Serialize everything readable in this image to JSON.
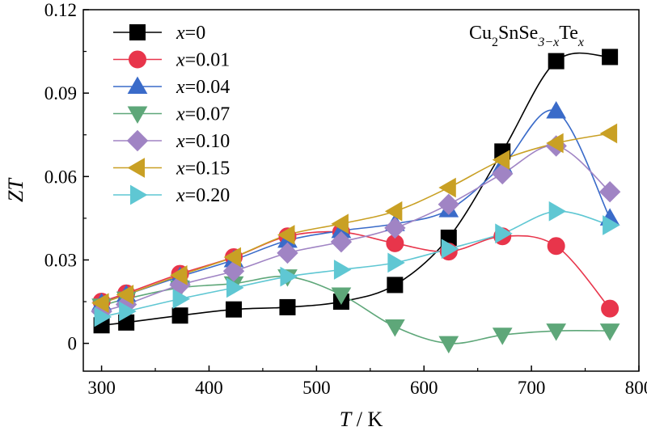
{
  "chart_data": {
    "type": "line",
    "title": "",
    "annotation": {
      "base": "Cu",
      "sub1": "2",
      "mid": "SnSe",
      "sub2": "3−x",
      "end": "Te",
      "sub3": "x"
    },
    "xlabel": {
      "var": "T",
      "unit": " / K"
    },
    "ylabel": "ZT",
    "xlim": [
      283,
      800
    ],
    "ylim": [
      -0.01,
      0.12
    ],
    "xticks": [
      300,
      400,
      500,
      600,
      700,
      800
    ],
    "yticks": [
      0,
      0.03,
      0.06,
      0.09,
      0.12
    ],
    "ytick_labels": [
      "0",
      "0.03",
      "0.06",
      "0.09",
      "0.12"
    ],
    "grid": false,
    "legend_position": "top-left",
    "x": [
      300,
      323,
      373,
      423,
      473,
      523,
      573,
      623,
      673,
      723,
      773
    ],
    "series": [
      {
        "name": "x=0",
        "label_var": "x",
        "label_val": "=0",
        "marker": "square",
        "color": "#000000",
        "values": [
          0.0065,
          0.0075,
          0.01,
          0.0122,
          0.013,
          0.015,
          0.021,
          0.038,
          0.069,
          0.1015,
          0.103
        ]
      },
      {
        "name": "x=0.01",
        "label_var": "x",
        "label_val": "=0.01",
        "marker": "circle",
        "color": "#e8354b",
        "values": [
          0.015,
          0.018,
          0.025,
          0.031,
          0.0385,
          0.04,
          0.036,
          0.033,
          0.0385,
          0.035,
          0.0125
        ]
      },
      {
        "name": "x=0.04",
        "label_var": "x",
        "label_val": "=0.04",
        "marker": "triangle-up",
        "color": "#3a6bc9",
        "values": [
          0.0145,
          0.0175,
          0.024,
          0.03,
          0.037,
          0.0405,
          0.043,
          0.048,
          0.064,
          0.0835,
          0.045
        ]
      },
      {
        "name": "x=0.07",
        "label_var": "x",
        "label_val": "=0.07",
        "marker": "triangle-down",
        "color": "#5ea779",
        "values": [
          0.0135,
          0.016,
          0.02,
          0.0215,
          0.024,
          0.0175,
          0.006,
          0.0,
          0.003,
          0.0045,
          0.0045
        ]
      },
      {
        "name": "x=0.10",
        "label_var": "x",
        "label_val": "=0.10",
        "marker": "diamond",
        "color": "#a084c4",
        "values": [
          0.0115,
          0.014,
          0.021,
          0.026,
          0.0325,
          0.0365,
          0.0415,
          0.05,
          0.061,
          0.071,
          0.0545
        ]
      },
      {
        "name": "x=0.15",
        "label_var": "x",
        "label_val": "=0.15",
        "marker": "triangle-left",
        "color": "#c9a024",
        "values": [
          0.0145,
          0.0175,
          0.0245,
          0.031,
          0.039,
          0.043,
          0.0475,
          0.056,
          0.066,
          0.072,
          0.0755
        ]
      },
      {
        "name": "x=0.20",
        "label_var": "x",
        "label_val": "=0.20",
        "marker": "triangle-right",
        "color": "#5fc7d3",
        "values": [
          0.0095,
          0.0115,
          0.016,
          0.02,
          0.024,
          0.0265,
          0.029,
          0.034,
          0.0395,
          0.0475,
          0.0425
        ]
      }
    ]
  }
}
